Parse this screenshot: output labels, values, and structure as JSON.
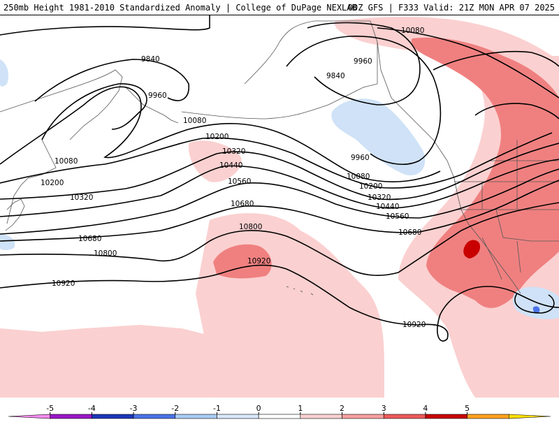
{
  "header": {
    "title": "250mb Height 1981-2010 Standardized Anomaly | College of DuPage NEXLAB",
    "run_info": "00Z GFS | F333 Valid: 21Z MON APR 07 2025"
  },
  "contour_labels": {
    "c9840": "9840",
    "c9960": "9960",
    "c10080": "10080",
    "c10200": "10200",
    "c10320": "10320",
    "c10440": "10440",
    "c10560": "10560",
    "c10680": "10680",
    "c10800": "10800",
    "c10920": "10920"
  },
  "colorbar": {
    "ticks": [
      "-5",
      "-4",
      "-3",
      "-2",
      "-1",
      "0",
      "1",
      "2",
      "3",
      "4",
      "5"
    ],
    "colors": [
      "#f78cf0",
      "#9b16c8",
      "#1c36b8",
      "#4a72e8",
      "#a8ccf4",
      "#d9e8fb",
      "#ffffff",
      "#fbd0d0",
      "#f7a0a0",
      "#ef5a5a",
      "#c80000",
      "#ffa21c",
      "#ffe000"
    ]
  },
  "colors": {
    "anomaly_pos_1": "#fbd0d0",
    "anomaly_pos_2": "#f08080",
    "anomaly_pos_3": "#c80000",
    "anomaly_neg_1": "#cfe2f7",
    "anomaly_neg_2": "#4a72e8"
  }
}
